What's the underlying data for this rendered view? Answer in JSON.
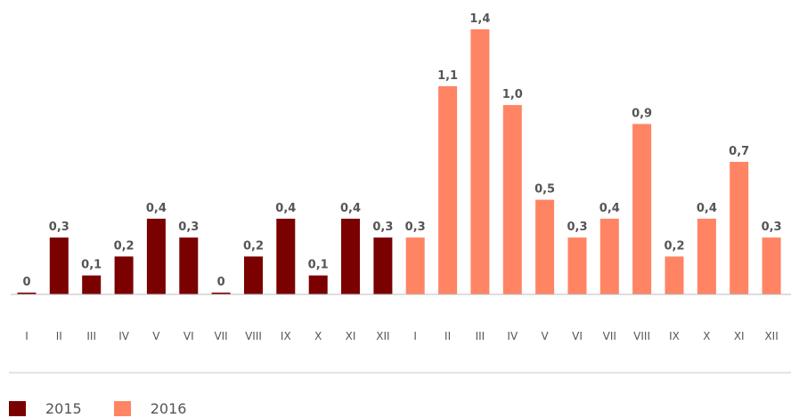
{
  "chart_data": {
    "type": "bar",
    "categories": [
      "I",
      "II",
      "III",
      "IV",
      "V",
      "VI",
      "VII",
      "VIII",
      "IX",
      "X",
      "XI",
      "XII",
      "I",
      "II",
      "III",
      "IV",
      "V",
      "VI",
      "VII",
      "VIII",
      "IX",
      "X",
      "XI",
      "XII"
    ],
    "values": [
      0,
      0.3,
      0.1,
      0.2,
      0.4,
      0.3,
      0,
      0.2,
      0.4,
      0.1,
      0.4,
      0.3,
      0.3,
      1.1,
      1.4,
      1.0,
      0.5,
      0.3,
      0.4,
      0.9,
      0.2,
      0.4,
      0.7,
      0.3
    ],
    "value_labels": [
      "0",
      "0,3",
      "0,1",
      "0,2",
      "0,4",
      "0,3",
      "0",
      "0,2",
      "0,4",
      "0,1",
      "0,4",
      "0,3",
      "0,3",
      "1,1",
      "1,4",
      "1,0",
      "0,5",
      "0,3",
      "0,4",
      "0,9",
      "0,2",
      "0,4",
      "0,7",
      "0,3"
    ],
    "series_index": [
      0,
      0,
      0,
      0,
      0,
      0,
      0,
      0,
      0,
      0,
      0,
      0,
      1,
      1,
      1,
      1,
      1,
      1,
      1,
      1,
      1,
      1,
      1,
      1
    ],
    "series": [
      {
        "name": "2015",
        "color": "#7B0000"
      },
      {
        "name": "2016",
        "color": "#FF8464"
      }
    ],
    "ylim": [
      0,
      1.4
    ],
    "grid": false,
    "legend_position": "bottom-left"
  },
  "legend": {
    "items": [
      {
        "label": "2015",
        "color": "#7B0000"
      },
      {
        "label": "2016",
        "color": "#FF8464"
      }
    ]
  }
}
